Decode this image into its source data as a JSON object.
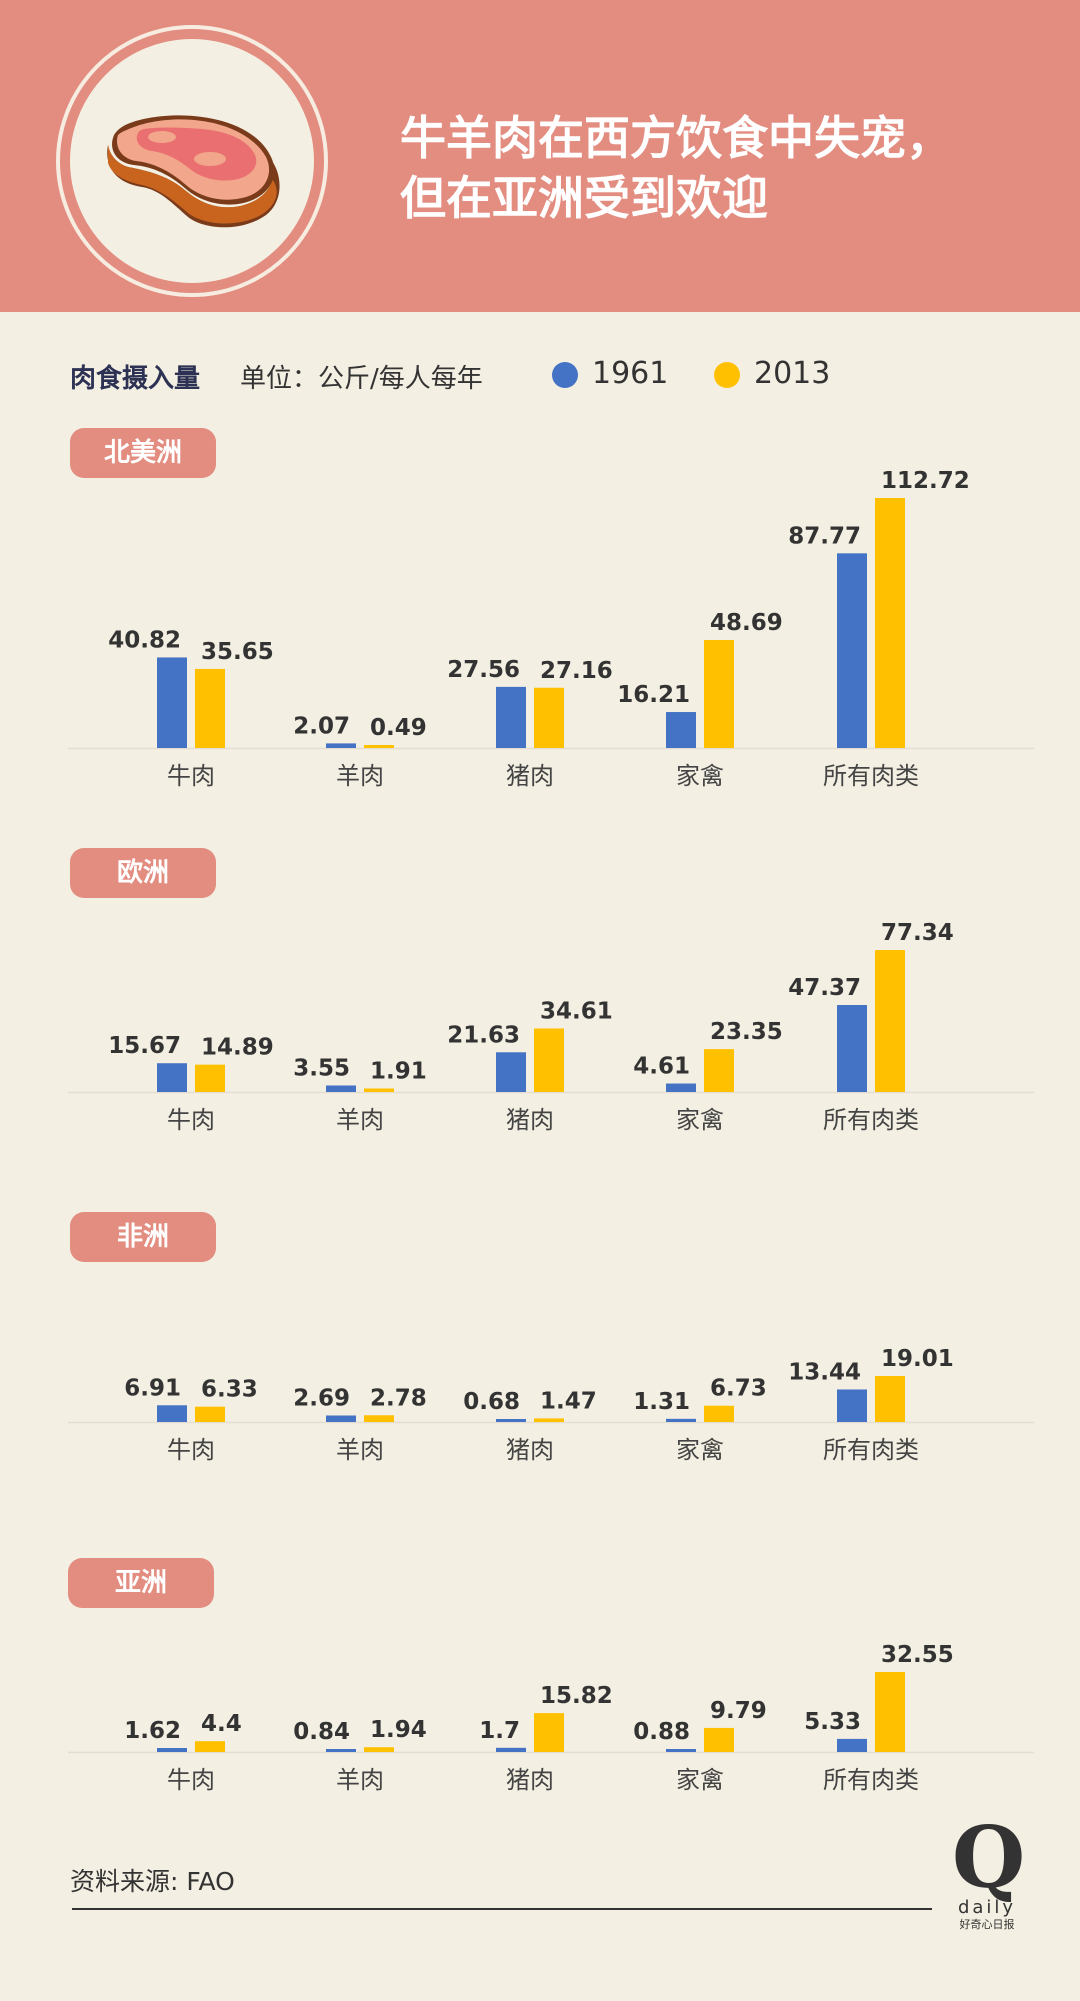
{
  "header": {
    "title_line1": "牛羊肉在西方饮食中失宠，",
    "title_line2": "但在亚洲受到欢迎",
    "icon": "steak-icon"
  },
  "legend": {
    "title": "肉食摄入量",
    "unit": "单位：公斤/每人每年",
    "series": [
      {
        "label": "1961",
        "color": "#4472c4"
      },
      {
        "label": "2013",
        "color": "#ffc000"
      }
    ]
  },
  "chart_data": [
    {
      "type": "bar",
      "region": "北美洲",
      "categories": [
        "牛肉",
        "羊肉",
        "猪肉",
        "家禽",
        "所有肉类"
      ],
      "series": [
        {
          "name": "1961",
          "values": [
            40.82,
            2.07,
            27.56,
            16.21,
            87.77
          ],
          "labels": [
            "40.82",
            "2.07",
            "27.56",
            "16.21",
            "87.77"
          ]
        },
        {
          "name": "2013",
          "values": [
            35.65,
            0.49,
            27.16,
            48.69,
            112.72
          ],
          "labels": [
            "35.65",
            "0.49",
            "27.16",
            "48.69",
            "112.72"
          ]
        }
      ]
    },
    {
      "type": "bar",
      "region": "欧洲",
      "categories": [
        "牛肉",
        "羊肉",
        "猪肉",
        "家禽",
        "所有肉类"
      ],
      "series": [
        {
          "name": "1961",
          "values": [
            15.67,
            3.55,
            21.63,
            4.61,
            47.37
          ],
          "labels": [
            "15.67",
            "3.55",
            "21.63",
            "4.61",
            "47.37"
          ]
        },
        {
          "name": "2013",
          "values": [
            14.89,
            1.91,
            34.61,
            23.35,
            77.34
          ],
          "labels": [
            "14.89",
            "1.91",
            "34.61",
            "23.35",
            "77.34"
          ]
        }
      ]
    },
    {
      "type": "bar",
      "region": "非洲",
      "categories": [
        "牛肉",
        "羊肉",
        "猪肉",
        "家禽",
        "所有肉类"
      ],
      "series": [
        {
          "name": "1961",
          "values": [
            6.91,
            2.69,
            0.68,
            1.31,
            13.44
          ],
          "labels": [
            "6.91",
            "2.69",
            "0.68",
            "1.31",
            "13.44"
          ]
        },
        {
          "name": "2013",
          "values": [
            6.33,
            2.78,
            1.47,
            6.73,
            19.01
          ],
          "labels": [
            "6.33",
            "2.78",
            "1.47",
            "6.73",
            "19.01"
          ]
        }
      ]
    },
    {
      "type": "bar",
      "region": "亚洲",
      "categories": [
        "牛肉",
        "羊肉",
        "猪肉",
        "家禽",
        "所有肉类"
      ],
      "series": [
        {
          "name": "1961",
          "values": [
            1.62,
            0.84,
            1.7,
            0.88,
            5.33
          ],
          "labels": [
            "1.62",
            "0.84",
            "1.7",
            "0.88",
            "5.33"
          ]
        },
        {
          "name": "2013",
          "values": [
            4.4,
            1.94,
            15.82,
            9.79,
            32.55
          ],
          "labels": [
            "4.4",
            "1.94",
            "15.82",
            "9.79",
            "32.55"
          ]
        }
      ]
    }
  ],
  "footer": {
    "source": "资料来源: FAO",
    "brand_letter": "Q",
    "brand_word": "daily",
    "brand_cn": "好奇心日报"
  }
}
